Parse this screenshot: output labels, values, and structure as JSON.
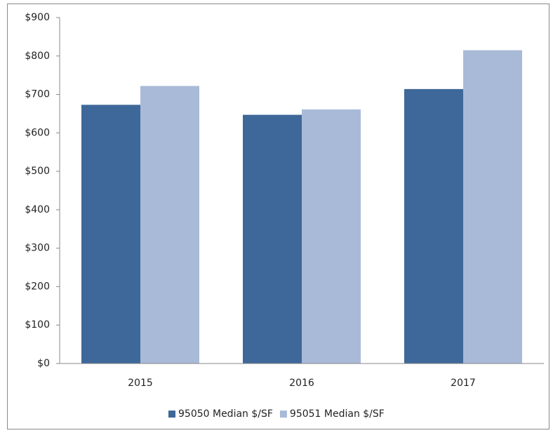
{
  "chart_data": {
    "type": "bar",
    "categories": [
      "2015",
      "2016",
      "2017"
    ],
    "series": [
      {
        "name": "95050 Median $/SF",
        "color": "#3e6899",
        "values": [
          673,
          647,
          714
        ]
      },
      {
        "name": "95051 Median $/SF",
        "color": "#a9bad8",
        "values": [
          722,
          661,
          815
        ]
      }
    ],
    "ylim": [
      0,
      900
    ],
    "yticks": [
      {
        "value": 0,
        "label": "$0"
      },
      {
        "value": 100,
        "label": "$100"
      },
      {
        "value": 200,
        "label": "$200"
      },
      {
        "value": 300,
        "label": "$300"
      },
      {
        "value": 400,
        "label": "$400"
      },
      {
        "value": 500,
        "label": "$500"
      },
      {
        "value": 600,
        "label": "$600"
      },
      {
        "value": 700,
        "label": "$700"
      },
      {
        "value": 800,
        "label": "$800"
      },
      {
        "value": 900,
        "label": "$900"
      }
    ],
    "legend": "bottom"
  }
}
